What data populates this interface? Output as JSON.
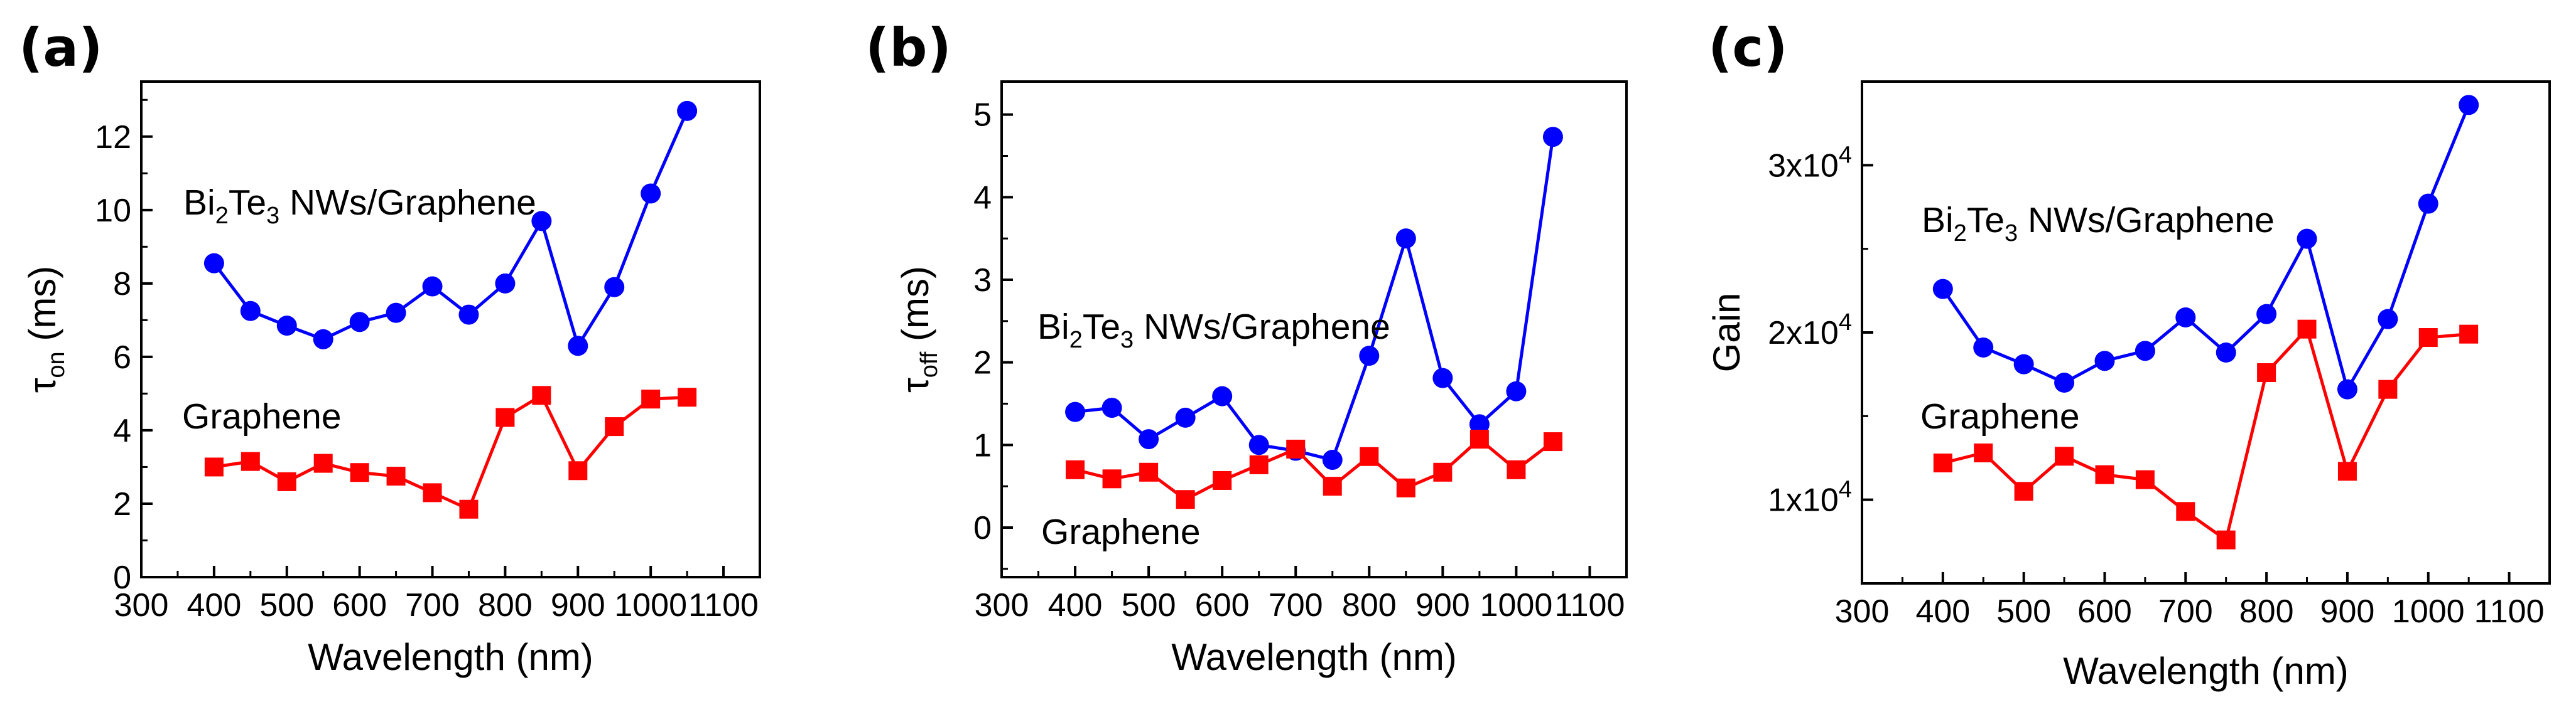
{
  "figure": {
    "background": "#ffffff"
  },
  "colors": {
    "bi2te3": "#0000ff",
    "graphene": "#ff0000",
    "axis": "#000000"
  },
  "chart_data": [
    {
      "type": "line",
      "panel": "(a)",
      "xlabel": "Wavelength (nm)",
      "ylabel": {
        "base": "τ",
        "sub": "on",
        "rest": " (ms)"
      },
      "xlim": [
        300,
        1150
      ],
      "ylim": [
        0,
        13.5
      ],
      "xticks": [
        300,
        400,
        500,
        600,
        700,
        800,
        900,
        1000,
        1100
      ],
      "yticks": [
        0,
        2,
        4,
        6,
        8,
        10,
        12
      ],
      "ytick_labels": [
        "0",
        "2",
        "4",
        "6",
        "8",
        "10",
        "12"
      ],
      "x": [
        400,
        450,
        500,
        550,
        600,
        650,
        700,
        750,
        800,
        850,
        900,
        950,
        1000,
        1050
      ],
      "series": [
        {
          "name": "Bi2Te3 NWs/Graphene",
          "marker": "circle",
          "color": "#0000ff",
          "values": [
            8.55,
            7.25,
            6.85,
            6.48,
            6.95,
            7.2,
            7.92,
            7.15,
            8.0,
            9.7,
            6.3,
            7.9,
            10.45,
            12.7
          ]
        },
        {
          "name": "Graphene",
          "marker": "square",
          "color": "#ff0000",
          "values": [
            3.0,
            3.15,
            2.6,
            3.1,
            2.85,
            2.75,
            2.3,
            1.85,
            4.35,
            4.95,
            2.9,
            4.1,
            4.85,
            4.9
          ]
        }
      ],
      "annotations": [
        {
          "parts": [
            [
              "Bi",
              ""
            ],
            [
              "2",
              "sub"
            ],
            [
              "Te",
              ""
            ],
            [
              "3",
              "sub"
            ],
            [
              " NWs/Graphene",
              ""
            ]
          ]
        },
        {
          "parts": [
            [
              "Graphene",
              ""
            ]
          ]
        }
      ]
    },
    {
      "type": "line",
      "panel": "(b)",
      "xlabel": "Wavelength (nm)",
      "ylabel": {
        "base": "τ",
        "sub": "off",
        "rest": " (ms)"
      },
      "xlim": [
        300,
        1150
      ],
      "ylim": [
        -0.6,
        5.4
      ],
      "xticks": [
        300,
        400,
        500,
        600,
        700,
        800,
        900,
        1000,
        1100
      ],
      "yticks": [
        0,
        1,
        2,
        3,
        4,
        5
      ],
      "ytick_labels": [
        "0",
        "1",
        "2",
        "3",
        "4",
        "5"
      ],
      "x": [
        400,
        450,
        500,
        550,
        600,
        650,
        700,
        750,
        800,
        850,
        900,
        950,
        1000,
        1050
      ],
      "series": [
        {
          "name": "Bi2Te3 NWs/Graphene",
          "marker": "circle",
          "color": "#0000ff",
          "values": [
            1.4,
            1.45,
            1.07,
            1.33,
            1.59,
            1.0,
            0.93,
            0.82,
            2.08,
            3.5,
            1.81,
            1.25,
            1.65,
            4.73
          ]
        },
        {
          "name": "Graphene",
          "marker": "square",
          "color": "#ff0000",
          "values": [
            0.7,
            0.59,
            0.67,
            0.34,
            0.57,
            0.76,
            0.95,
            0.5,
            0.86,
            0.48,
            0.67,
            1.07,
            0.7,
            1.04
          ]
        }
      ],
      "annotations": [
        {
          "parts": [
            [
              "Bi",
              ""
            ],
            [
              "2",
              "sub"
            ],
            [
              "Te",
              ""
            ],
            [
              "3",
              "sub"
            ],
            [
              " NWs/Graphene",
              ""
            ]
          ]
        },
        {
          "parts": [
            [
              "Graphene",
              ""
            ]
          ]
        }
      ]
    },
    {
      "type": "line",
      "panel": "(c)",
      "xlabel": "Wavelength (nm)",
      "ylabel": {
        "base": "Gain",
        "sub": "",
        "rest": ""
      },
      "xlim": [
        300,
        1150
      ],
      "ylim": [
        5000,
        35000
      ],
      "xticks": [
        300,
        400,
        500,
        600,
        700,
        800,
        900,
        1000,
        1100
      ],
      "yticks": [
        10000,
        20000,
        30000
      ],
      "ytick_labels": [
        "1x10",
        "2x10",
        "3x10"
      ],
      "ytick_exponent": "4",
      "x": [
        400,
        450,
        500,
        550,
        600,
        650,
        700,
        750,
        800,
        850,
        900,
        950,
        1000,
        1050
      ],
      "series": [
        {
          "name": "Bi2Te3 NWs/Graphene",
          "marker": "circle",
          "color": "#0000ff",
          "values": [
            22600,
            19100,
            18100,
            17000,
            18300,
            18900,
            20900,
            18800,
            21100,
            25600,
            16600,
            20800,
            27700,
            33600
          ]
        },
        {
          "name": "Graphene",
          "marker": "square",
          "color": "#ff0000",
          "values": [
            12200,
            12800,
            10500,
            12600,
            11500,
            11200,
            9300,
            7600,
            17600,
            20200,
            11700,
            16600,
            19700,
            19900
          ]
        }
      ],
      "annotations": [
        {
          "parts": [
            [
              "Bi",
              ""
            ],
            [
              "2",
              "sub"
            ],
            [
              "Te",
              ""
            ],
            [
              "3",
              "sub"
            ],
            [
              " NWs/Graphene",
              ""
            ]
          ]
        },
        {
          "parts": [
            [
              "Graphene",
              ""
            ]
          ]
        }
      ]
    }
  ]
}
